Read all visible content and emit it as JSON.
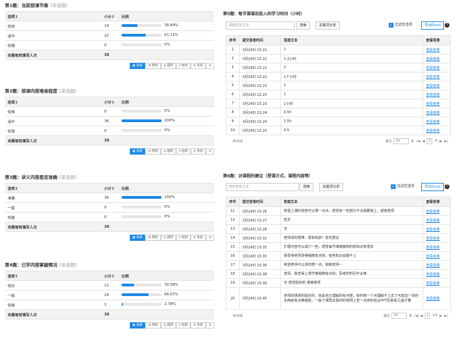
{
  "questions": [
    {
      "title": "第1题：当前授课节奏",
      "type": "[单选题]",
      "head": {
        "option": "选项↕",
        "count": "小计↕",
        "ratio": "比例"
      },
      "rows": [
        {
          "option": "较快",
          "count": "14",
          "pct": "38.89%",
          "fill": 0.3889
        },
        {
          "option": "适中",
          "count": "22",
          "pct": "61.11%",
          "fill": 0.6111
        },
        {
          "option": "较慢",
          "count": "0",
          "pct": "0%",
          "fill": 0
        }
      ],
      "summary": {
        "label": "本题有效填写人次",
        "value": "36"
      }
    },
    {
      "title": "第2题：授课内容难易程度",
      "type": "[单选题]",
      "head": {
        "option": "选项↕",
        "count": "小计↕",
        "ratio": "比例"
      },
      "rows": [
        {
          "option": "较难",
          "count": "0",
          "pct": "0%",
          "fill": 0
        },
        {
          "option": "适中",
          "count": "36",
          "pct": "100%",
          "fill": 1
        },
        {
          "option": "较易",
          "count": "0",
          "pct": "0%",
          "fill": 0
        }
      ],
      "summary": {
        "label": "本题有效填写人次",
        "value": "36"
      }
    },
    {
      "title": "第3题：讲义内容是否准确",
      "type": "[单选题]",
      "head": {
        "option": "选项↕",
        "count": "小计↕",
        "ratio": "比例"
      },
      "rows": [
        {
          "option": "准确",
          "count": "36",
          "pct": "100%",
          "fill": 1
        },
        {
          "option": "一般",
          "count": "0",
          "pct": "0%",
          "fill": 0
        },
        {
          "option": "较差",
          "count": "0",
          "pct": "0%",
          "fill": 0
        }
      ],
      "summary": {
        "label": "本题有效填写人次",
        "value": "36"
      }
    },
    {
      "title": "第4题：已学内容掌握情况",
      "type": "[单选题]",
      "head": {
        "option": "选项↕",
        "count": "小计↕",
        "ratio": "比例"
      },
      "rows": [
        {
          "option": "较好",
          "count": "11",
          "pct": "30.56%",
          "fill": 0.3056
        },
        {
          "option": "一般",
          "count": "24",
          "pct": "66.67%",
          "fill": 0.6667
        },
        {
          "option": "较差",
          "count": "1",
          "pct": "2.78%",
          "fill": 0.0278
        }
      ],
      "summary": {
        "label": "本题有效填写人次",
        "value": "36"
      }
    }
  ],
  "view_buttons": {
    "table": "表格",
    "pie": "饼状",
    "donut": "圆环",
    "column": "柱状",
    "bar": "条形",
    "more": "⊘"
  },
  "q5": {
    "title": "第5题：每节课课后投入的学习时间（小时）",
    "search_placeholder": "搜索答案文本",
    "search_btn": "搜索",
    "keyword_btn": "关键词分析",
    "filter_label": "过滤空选项",
    "export_btn": "导出Excel",
    "headers": {
      "no": "序号",
      "time": "提交答卷时间",
      "text": "答案文本",
      "view": "查看答卷"
    },
    "rows": [
      {
        "no": "1",
        "time": "3月24日 15:21",
        "text": "1",
        "view": "查看答卷"
      },
      {
        "no": "2",
        "time": "3月24日 15:22",
        "text": "1-2小时",
        "view": "查看答卷"
      },
      {
        "no": "3",
        "time": "3月24日 15:22",
        "text": "2",
        "view": "查看答卷"
      },
      {
        "no": "4",
        "time": "3月24日 15:22",
        "text": "1个小时",
        "view": "查看答卷"
      },
      {
        "no": "5",
        "time": "3月24日 15:23",
        "text": "1",
        "view": "查看答卷"
      },
      {
        "no": "6",
        "time": "3月24日 15:23",
        "text": "1",
        "view": "查看答卷"
      },
      {
        "no": "7",
        "time": "3月24日 15:23",
        "text": "1小时",
        "view": "查看答卷"
      },
      {
        "no": "8",
        "time": "3月24日 15:24",
        "text": "0.5h",
        "view": "查看答卷"
      },
      {
        "no": "9",
        "time": "3月24日 15:24",
        "text": "1.5h",
        "view": "查看答卷"
      },
      {
        "no": "10",
        "time": "3月24日 15:25",
        "text": "0.5",
        "view": "查看答卷"
      }
    ],
    "pager": {
      "total": "共36条",
      "per_page_label": "每页",
      "per_page": "10",
      "unit": "条",
      "page": "1",
      "of": "/4"
    }
  },
  "q6": {
    "title": "第6题：对课程的建议（授课方式、课程内容等）",
    "search_placeholder": "搜索答案文本",
    "search_btn": "搜索",
    "keyword_btn": "关键词分析",
    "filter_label": "过滤空选项",
    "export_btn": "导出Excel",
    "headers": {
      "no": "序号",
      "time": "提交答卷时间",
      "text": "答案文本",
      "view": "查看答卷"
    },
    "rows": [
      {
        "no": "11",
        "time": "3月24日 15:26",
        "text": "希望上课的进度可以慢一点点，感觉有一些部分不太能跟得上，谢谢老师",
        "view": "查看答卷"
      },
      {
        "no": "12",
        "time": "3月24日 15:27",
        "text": "暂无",
        "view": "查看答卷"
      },
      {
        "no": "13",
        "time": "3月24日 15:28",
        "text": "无",
        "view": "查看答卷"
      },
      {
        "no": "14",
        "time": "3月24日 15:32",
        "text": "老师讲的很棒，很有收获！暂无建议",
        "view": "查看答卷"
      },
      {
        "no": "15",
        "time": "3月24日 15:35",
        "text": "扩展内容可以减少一些，感觉每节课接触到的新知识有很多",
        "view": "查看答卷"
      },
      {
        "no": "16",
        "time": "3月24日 15:35",
        "text": "我觉得老师讲得稍微有点快，有些知识会跟不上",
        "view": "查看答卷"
      },
      {
        "no": "17",
        "time": "3月24日 15:36",
        "text": "希望老师可以讲的慢一点，谢谢老师~",
        "view": "查看答卷"
      },
      {
        "no": "18",
        "time": "3月24日 15:38",
        "text": "老师，我觉得上课节奏稍微有点快，思考的时间不太够",
        "view": "查看答卷"
      },
      {
        "no": "19",
        "time": "3月24日 15:39",
        "text": "无 感觉挺好的 谢谢老师",
        "view": "查看答卷"
      },
      {
        "no": "20",
        "time": "3月24日 15:45",
        "text": "老师的课讲的挺好的，就是自己理解的有点慢，有时候一个点理解不上去了可能这一块的东西就有点难接受，一般下课再去看的时候网上查一点资料结合PPT反复看几遍才懂",
        "view": "查看答卷"
      }
    ],
    "pager": {
      "total": "共36条",
      "per_page_label": "每页",
      "per_page": "10",
      "unit": "条",
      "page": "2",
      "of": "2/4"
    }
  }
}
